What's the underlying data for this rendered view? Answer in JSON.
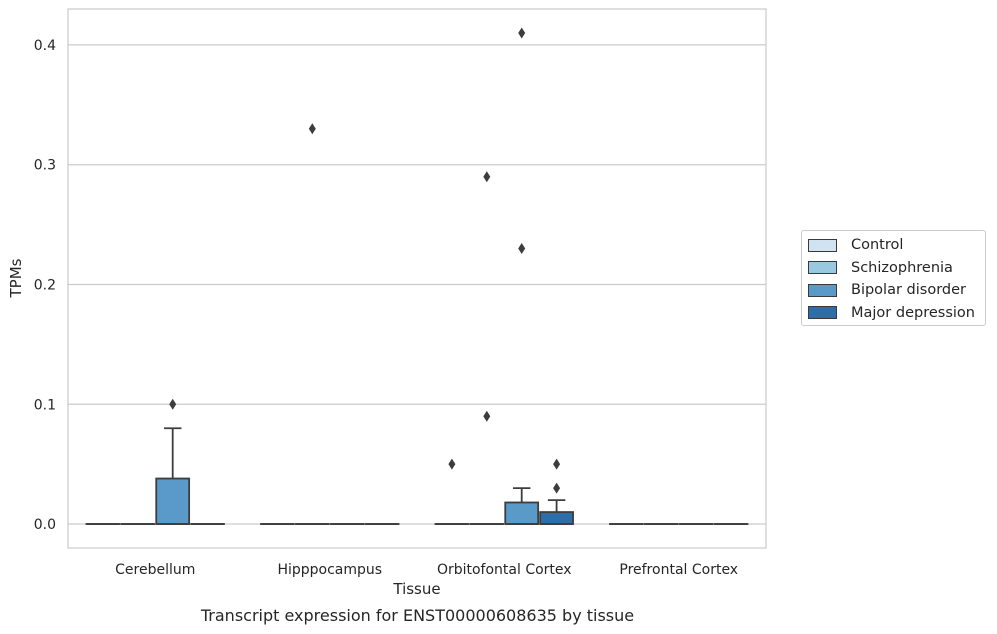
{
  "chart_data": {
    "type": "box",
    "xlabel": "Tissue",
    "ylabel": "TPMs",
    "caption": "Transcript expression for ENST00000608635 by tissue",
    "ylim": [
      -0.02,
      0.43
    ],
    "yticks": [
      0.0,
      0.1,
      0.2,
      0.3,
      0.4
    ],
    "ytick_labels": [
      "0.0",
      "0.1",
      "0.2",
      "0.3",
      "0.4"
    ],
    "grid": "horizontal",
    "legend_position": "right",
    "categories": [
      "Cerebellum",
      "Hipppocampus",
      "Orbitofontal Cortex",
      "Prefrontal Cortex"
    ],
    "series": [
      {
        "name": "Control",
        "color": "#d1e2f1",
        "boxes": [
          {
            "q1": 0,
            "median": 0,
            "q3": 0,
            "whislo": 0,
            "whishi": 0,
            "fliers": []
          },
          {
            "q1": 0,
            "median": 0,
            "q3": 0,
            "whislo": 0,
            "whishi": 0,
            "fliers": []
          },
          {
            "q1": 0,
            "median": 0,
            "q3": 0,
            "whislo": 0,
            "whishi": 0,
            "fliers": [
              0.05
            ]
          },
          {
            "q1": 0,
            "median": 0,
            "q3": 0,
            "whislo": 0,
            "whishi": 0,
            "fliers": []
          }
        ]
      },
      {
        "name": "Schizophrenia",
        "color": "#9ac8e0",
        "boxes": [
          {
            "q1": 0,
            "median": 0,
            "q3": 0,
            "whislo": 0,
            "whishi": 0,
            "fliers": []
          },
          {
            "q1": 0,
            "median": 0,
            "q3": 0,
            "whislo": 0,
            "whishi": 0,
            "fliers": [
              0.33
            ]
          },
          {
            "q1": 0,
            "median": 0,
            "q3": 0,
            "whislo": 0,
            "whishi": 0,
            "fliers": [
              0.09,
              0.29
            ]
          },
          {
            "q1": 0,
            "median": 0,
            "q3": 0,
            "whislo": 0,
            "whishi": 0,
            "fliers": []
          }
        ]
      },
      {
        "name": "Bipolar disorder",
        "color": "#5a9ac8",
        "boxes": [
          {
            "q1": 0,
            "median": 0,
            "q3": 0.038,
            "whislo": 0,
            "whishi": 0.08,
            "fliers": [
              0.1
            ]
          },
          {
            "q1": 0,
            "median": 0,
            "q3": 0,
            "whislo": 0,
            "whishi": 0,
            "fliers": []
          },
          {
            "q1": 0,
            "median": 0,
            "q3": 0.018,
            "whislo": 0,
            "whishi": 0.03,
            "fliers": [
              0.23,
              0.41
            ]
          },
          {
            "q1": 0,
            "median": 0,
            "q3": 0,
            "whislo": 0,
            "whishi": 0,
            "fliers": []
          }
        ]
      },
      {
        "name": "Major depression",
        "color": "#2e6ea8",
        "boxes": [
          {
            "q1": 0,
            "median": 0,
            "q3": 0,
            "whislo": 0,
            "whishi": 0,
            "fliers": []
          },
          {
            "q1": 0,
            "median": 0,
            "q3": 0,
            "whislo": 0,
            "whishi": 0,
            "fliers": []
          },
          {
            "q1": 0,
            "median": 0,
            "q3": 0.01,
            "whislo": 0,
            "whishi": 0.02,
            "fliers": [
              0.03,
              0.05
            ]
          },
          {
            "q1": 0,
            "median": 0,
            "q3": 0,
            "whislo": 0,
            "whishi": 0,
            "fliers": []
          }
        ]
      }
    ]
  }
}
